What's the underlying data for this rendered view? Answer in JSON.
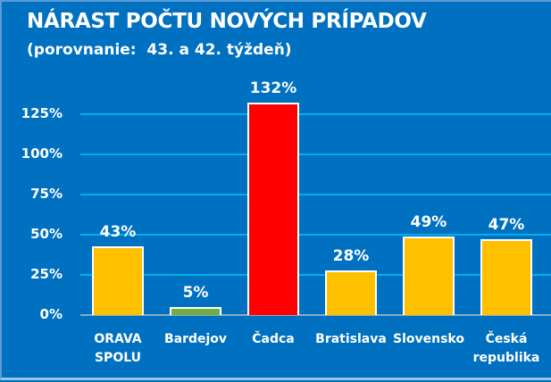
{
  "chart_data": {
    "type": "bar",
    "title": "NÁRAST POČTU NOVÝCH PRÍPADOV",
    "subtitle": "(porovnanie:  43. a 42. týždeň)",
    "xlabel": "",
    "ylabel": "",
    "categories": [
      "ORAVA\nSPOLU",
      "Bardejov",
      "Čadca",
      "Bratislava",
      "Slovensko",
      "Česká\nrepublika"
    ],
    "values": [
      43,
      5,
      132,
      28,
      49,
      47
    ],
    "value_labels": [
      "43%",
      "5%",
      "132%",
      "28%",
      "49%",
      "47%"
    ],
    "bar_colors": [
      "#FFC000",
      "#70AD47",
      "#FF0000",
      "#FFC000",
      "#FFC000",
      "#FFC000"
    ],
    "ylim": [
      0,
      137
    ],
    "yticks": [
      0,
      25,
      50,
      75,
      100,
      125
    ],
    "ytick_labels": [
      "0%",
      "25%",
      "50%",
      "75%",
      "100%",
      "125%"
    ],
    "grid": true,
    "legend": null
  },
  "colors": {
    "background": "#0070C0",
    "gridline": "#00B0F0",
    "text": "#FFFFFF"
  }
}
